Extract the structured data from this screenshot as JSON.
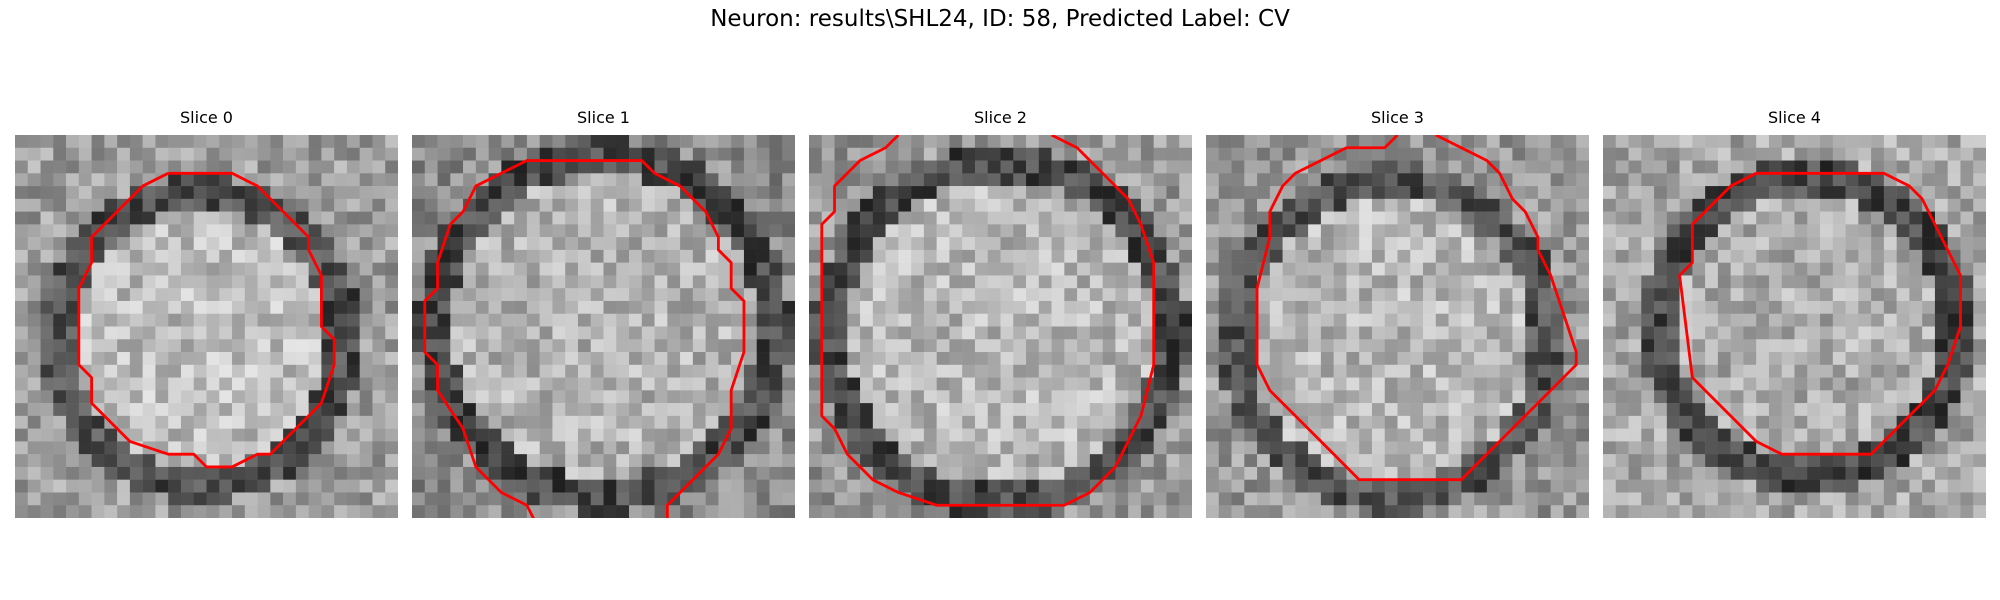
{
  "figure": {
    "title": "Neuron: results\\SHL24, ID: 58, Predicted Label: CV",
    "contour_color": "#ff0000",
    "colormap": "gray"
  },
  "slices": [
    {
      "title": "Slice 0"
    },
    {
      "title": "Slice 1"
    },
    {
      "title": "Slice 2"
    },
    {
      "title": "Slice 3"
    },
    {
      "title": "Slice 4"
    }
  ]
}
